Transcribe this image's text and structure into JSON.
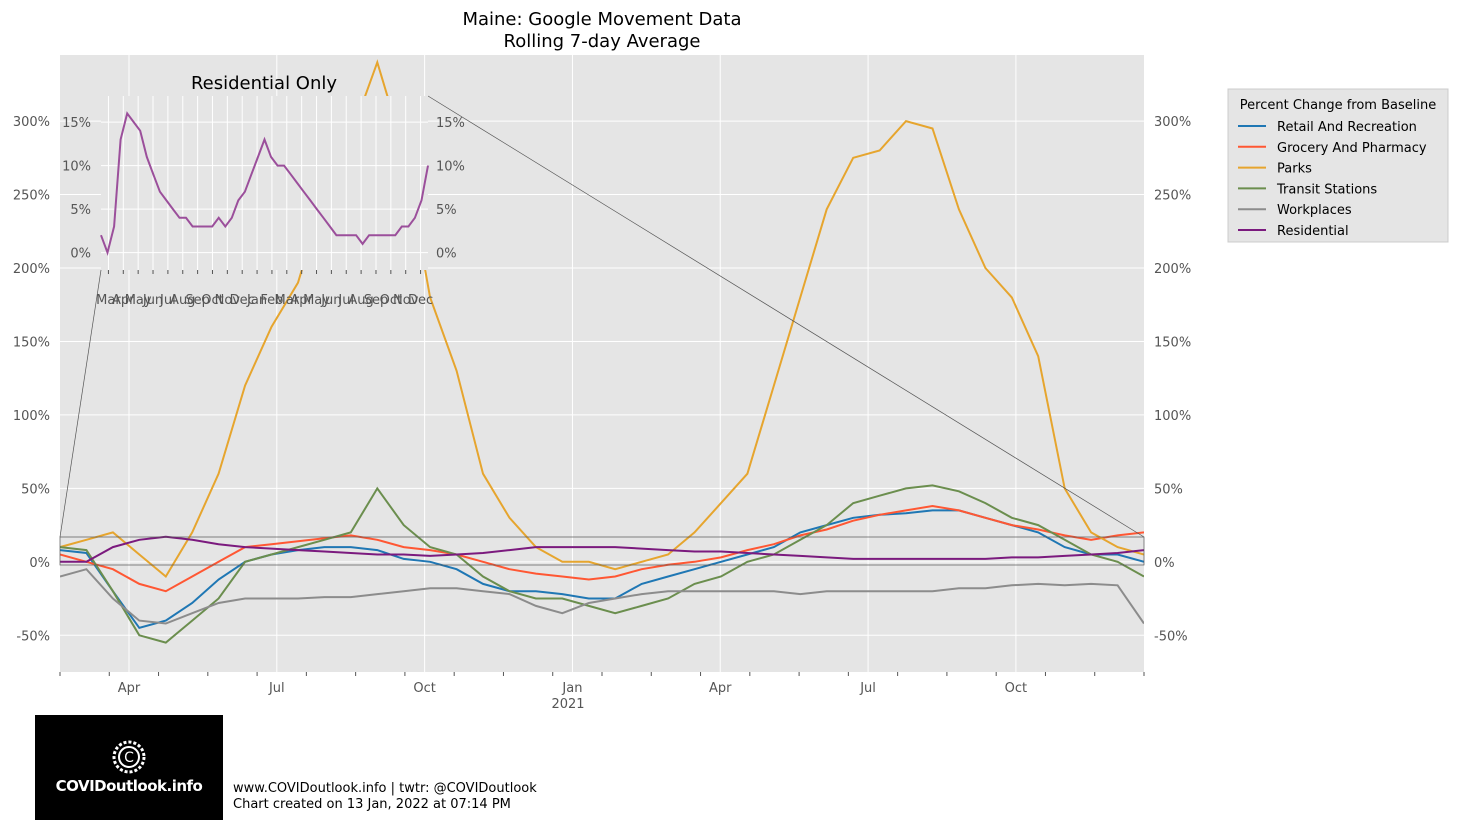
{
  "chart_data": [
    {
      "type": "line",
      "title": "Maine: Google Movement Data",
      "subtitle": "Rolling 7-day Average",
      "ylim": [
        -75,
        345
      ],
      "yticks": [
        "-50%",
        "0%",
        "50%",
        "100%",
        "150%",
        "200%",
        "250%",
        "300%"
      ],
      "ytick_values": [
        -50,
        0,
        50,
        100,
        150,
        200,
        250,
        300
      ],
      "xticks": [
        "Apr",
        "Jul",
        "Oct",
        "Jan",
        "Apr",
        "Jul",
        "Oct"
      ],
      "xtick_year": "2021",
      "grid": true,
      "legend": {
        "title": "Percent Change from Baseline",
        "placement": "outside-right"
      },
      "series": [
        {
          "name": "Retail And Recreation",
          "color": "#1f77b4",
          "values": [
            8,
            6,
            -20,
            -45,
            -40,
            -28,
            -12,
            0,
            5,
            8,
            10,
            10,
            8,
            2,
            0,
            -5,
            -15,
            -20,
            -20,
            -22,
            -25,
            -25,
            -15,
            -10,
            -5,
            0,
            5,
            10,
            20,
            25,
            30,
            32,
            33,
            35,
            35,
            30,
            25,
            20,
            10,
            5,
            5,
            0
          ]
        },
        {
          "name": "Grocery And Pharmacy",
          "color": "#ff5733",
          "values": [
            5,
            0,
            -5,
            -15,
            -20,
            -10,
            0,
            10,
            12,
            14,
            16,
            18,
            15,
            10,
            8,
            5,
            0,
            -5,
            -8,
            -10,
            -12,
            -10,
            -5,
            -2,
            0,
            3,
            8,
            12,
            18,
            22,
            28,
            32,
            35,
            38,
            35,
            30,
            25,
            22,
            18,
            15,
            18,
            20
          ]
        },
        {
          "name": "Parks",
          "color": "#e6a52e",
          "values": [
            10,
            15,
            20,
            5,
            -10,
            20,
            60,
            120,
            160,
            190,
            250,
            290,
            340,
            280,
            180,
            130,
            60,
            30,
            10,
            0,
            0,
            -5,
            0,
            5,
            20,
            40,
            60,
            120,
            180,
            240,
            275,
            280,
            300,
            295,
            240,
            200,
            180,
            140,
            50,
            20,
            10,
            5
          ]
        },
        {
          "name": "Transit Stations",
          "color": "#6b8e4e",
          "values": [
            10,
            8,
            -20,
            -50,
            -55,
            -40,
            -25,
            0,
            5,
            10,
            15,
            20,
            50,
            25,
            10,
            5,
            -10,
            -20,
            -25,
            -25,
            -30,
            -35,
            -30,
            -25,
            -15,
            -10,
            0,
            5,
            15,
            25,
            40,
            45,
            50,
            52,
            48,
            40,
            30,
            25,
            15,
            5,
            0,
            -10
          ]
        },
        {
          "name": "Workplaces",
          "color": "#8c8c8c",
          "values": [
            -10,
            -5,
            -25,
            -40,
            -42,
            -35,
            -28,
            -25,
            -25,
            -25,
            -24,
            -24,
            -22,
            -20,
            -18,
            -18,
            -20,
            -22,
            -30,
            -35,
            -28,
            -25,
            -22,
            -20,
            -20,
            -20,
            -20,
            -20,
            -22,
            -20,
            -20,
            -20,
            -20,
            -20,
            -18,
            -18,
            -16,
            -15,
            -16,
            -15,
            -16,
            -42
          ]
        },
        {
          "name": "Residential",
          "color": "#7b1a7e",
          "values": [
            0,
            0,
            10,
            15,
            17,
            15,
            12,
            10,
            9,
            8,
            7,
            6,
            5,
            5,
            4,
            5,
            6,
            8,
            10,
            10,
            10,
            10,
            9,
            8,
            7,
            7,
            6,
            5,
            4,
            3,
            2,
            2,
            2,
            2,
            2,
            2,
            3,
            3,
            4,
            5,
            6,
            8
          ]
        }
      ]
    },
    {
      "type": "line",
      "title": "Residential Only",
      "ylim": [
        -2,
        18
      ],
      "yticks": [
        "0%",
        "5%",
        "10%",
        "15%"
      ],
      "ytick_values": [
        0,
        5,
        10,
        15
      ],
      "xticks": [
        "Mar",
        "Apr",
        "May",
        "Jun",
        "Jul",
        "Aug",
        "Sep",
        "Oct",
        "Nov",
        "Dec",
        "Jan",
        "Feb",
        "Mar",
        "Apr",
        "May",
        "Jun",
        "Jul",
        "Aug",
        "Sep",
        "Oct",
        "Nov",
        "Dec"
      ],
      "grid": true,
      "series": [
        {
          "name": "Residential",
          "color": "#9b4f9b",
          "values": [
            2,
            0,
            3,
            13,
            16,
            15,
            14,
            11,
            9,
            7,
            6,
            5,
            4,
            4,
            3,
            3,
            3,
            3,
            4,
            3,
            4,
            6,
            7,
            9,
            11,
            13,
            11,
            10,
            10,
            9,
            8,
            7,
            6,
            5,
            4,
            3,
            2,
            2,
            2,
            2,
            1,
            2,
            2,
            2,
            2,
            2,
            3,
            3,
            4,
            6,
            10
          ]
        }
      ]
    }
  ],
  "footer": {
    "logo_text": "COVIDoutlook.info",
    "line1": "www.COVIDoutlook.info | twtr: @COVIDoutlook",
    "line2": "Chart created on 13 Jan, 2022 at 07:14 PM"
  }
}
